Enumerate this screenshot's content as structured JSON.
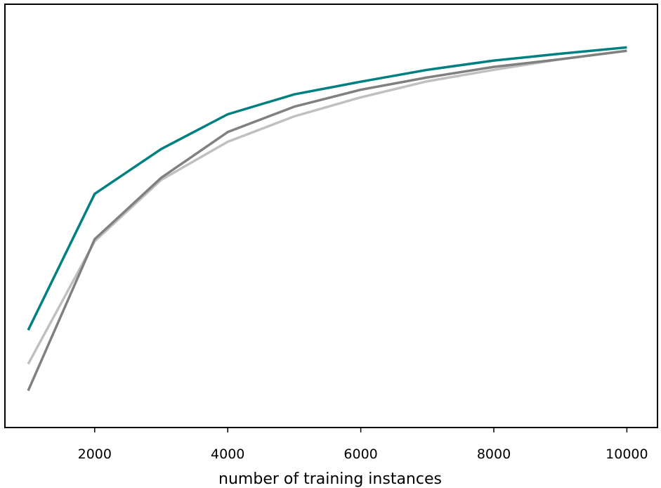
{
  "chart_data": {
    "type": "line",
    "title": "",
    "xlabel": "number of training instances",
    "ylabel": "",
    "x": [
      1000,
      2000,
      3000,
      4000,
      5000,
      6000,
      7000,
      8000,
      9000,
      10000
    ],
    "xticks": [
      2000,
      4000,
      6000,
      8000,
      10000
    ],
    "xlim": [
      650,
      10460
    ],
    "ylim": [
      0.0,
      1.0
    ],
    "yticks_visible": false,
    "grid": false,
    "legend": "none",
    "series": [
      {
        "color": "#c0c0c0",
        "values": [
          0.15,
          0.44,
          0.585,
          0.675,
          0.735,
          0.78,
          0.818,
          0.845,
          0.87,
          0.89
        ]
      },
      {
        "color": "#808080",
        "values": [
          0.087,
          0.445,
          0.59,
          0.698,
          0.758,
          0.798,
          0.827,
          0.852,
          0.87,
          0.89
        ]
      },
      {
        "color": "#008080",
        "values": [
          0.23,
          0.552,
          0.658,
          0.74,
          0.787,
          0.817,
          0.845,
          0.867,
          0.883,
          0.898
        ]
      }
    ]
  }
}
